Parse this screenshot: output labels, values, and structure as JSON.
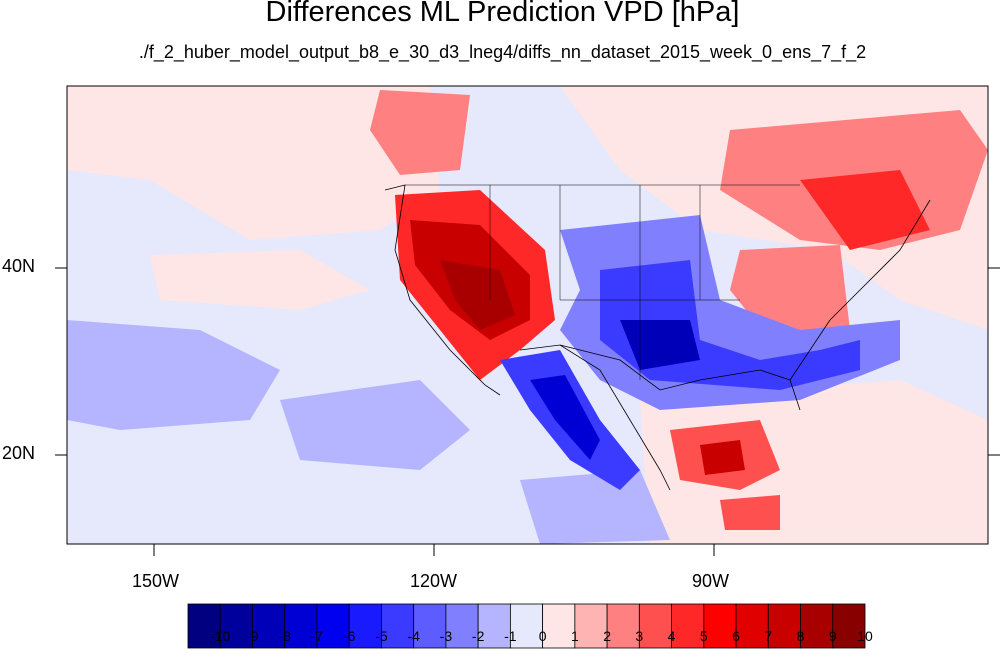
{
  "title": "Differences ML Prediction VPD [hPa]",
  "subtitle": "./f_2_huber_model_output_b8_e_30_d3_lneg4/diffs_nn_dataset_2015_week_0_ens_7_f_2",
  "lat_labels": [
    "40N",
    "20N"
  ],
  "lon_labels": [
    "150W",
    "120W",
    "90W"
  ],
  "colorbar": {
    "labels": [
      "-10",
      "-9",
      "-8",
      "-7",
      "-6",
      "-5",
      "-4",
      "-3",
      "-2",
      "-1",
      "0",
      "1",
      "2",
      "3",
      "4",
      "5",
      "6",
      "7",
      "8",
      "9",
      "10"
    ],
    "colors": [
      "#000080",
      "#00009c",
      "#0000b8",
      "#0000d4",
      "#0000f0",
      "#1a1aff",
      "#3b3bff",
      "#5c5cff",
      "#8080ff",
      "#b4b4ff",
      "#e6e8fb",
      "#ffe6e6",
      "#ffb4b4",
      "#ff8080",
      "#ff5050",
      "#ff2828",
      "#ff0000",
      "#e00000",
      "#c80000",
      "#a80000",
      "#880000"
    ]
  },
  "palette": {
    "background": "#e6e8fb",
    "light_red": "#ffe6e6",
    "red": "#ff2828",
    "dark_red": "#a80000",
    "light_blue": "#b4b4ff",
    "blue": "#3b3bff",
    "dark_blue": "#0000b8"
  }
}
